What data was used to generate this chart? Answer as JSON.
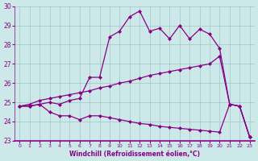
{
  "xlabel": "Windchill (Refroidissement éolien,°C)",
  "xlim": [
    -0.5,
    23.5
  ],
  "ylim": [
    23,
    30
  ],
  "xticks": [
    0,
    1,
    2,
    3,
    4,
    5,
    6,
    7,
    8,
    9,
    10,
    11,
    12,
    13,
    14,
    15,
    16,
    17,
    18,
    19,
    20,
    21,
    22,
    23
  ],
  "yticks": [
    23,
    24,
    25,
    26,
    27,
    28,
    29,
    30
  ],
  "bg_color": "#cde8e8",
  "line_color": "#880088",
  "grid_color": "#a0c8c8",
  "line1_y": [
    24.8,
    24.8,
    24.9,
    24.5,
    24.3,
    24.3,
    24.1,
    24.3,
    24.3,
    24.2,
    24.1,
    24.0,
    23.9,
    23.85,
    23.75,
    23.7,
    23.65,
    23.6,
    23.55,
    23.5,
    23.45,
    24.9,
    24.8,
    23.2
  ],
  "line2_y": [
    24.8,
    24.9,
    25.1,
    25.2,
    25.3,
    25.4,
    25.5,
    25.6,
    25.75,
    25.85,
    26.0,
    26.1,
    26.25,
    26.4,
    26.5,
    26.6,
    26.7,
    26.8,
    26.9,
    27.0,
    27.4,
    24.9,
    24.8,
    23.2
  ],
  "line3_y": [
    24.8,
    24.8,
    24.9,
    25.0,
    24.9,
    25.1,
    25.2,
    26.3,
    26.3,
    28.4,
    28.7,
    29.45,
    29.75,
    28.7,
    28.85,
    28.3,
    29.0,
    28.3,
    28.8,
    28.55,
    27.8,
    24.9,
    24.8,
    23.2
  ],
  "markersize": 2.0,
  "linewidth": 0.9
}
